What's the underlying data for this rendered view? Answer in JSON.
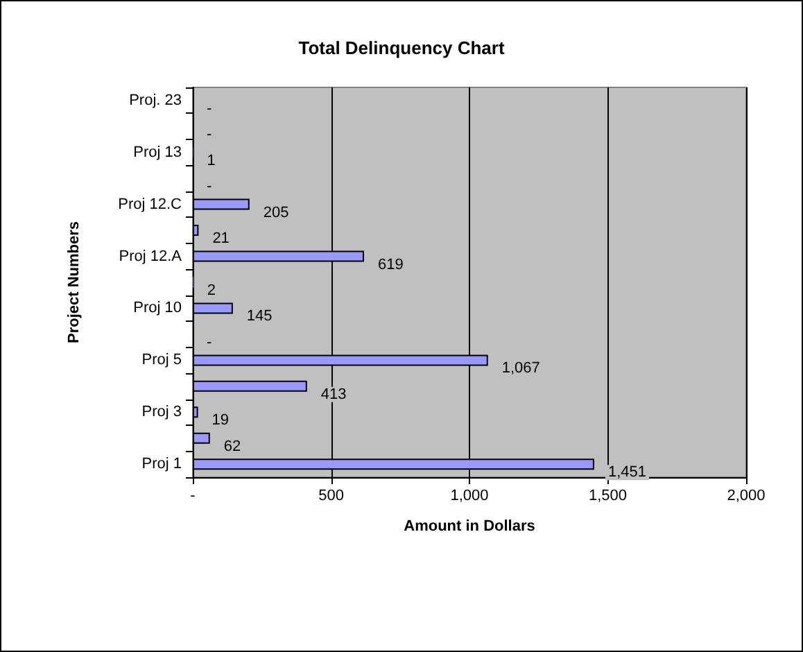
{
  "chart_data": {
    "type": "bar",
    "orientation": "horizontal",
    "title": "Total Delinquency Chart",
    "xlabel": "Amount in Dollars",
    "ylabel": "Project Numbers",
    "categories": [
      "Proj. 23",
      null,
      "Proj 13",
      null,
      "Proj 12.C",
      null,
      "Proj 12.A",
      null,
      "Proj 10",
      null,
      "Proj 5",
      null,
      "Proj 3",
      null,
      "Proj 1"
    ],
    "values": [
      0,
      0,
      1,
      0,
      205,
      21,
      619,
      2,
      145,
      0,
      1067,
      413,
      19,
      62,
      1451
    ],
    "value_labels": [
      "-",
      "-",
      "1",
      "-",
      "205",
      "21",
      "619",
      "2",
      "145",
      "-",
      "1,067",
      "413",
      "19",
      "62",
      "1,451"
    ],
    "color": "#9999ff",
    "xlim": [
      0,
      2000
    ],
    "xticks": [
      {
        "value": 0,
        "label": "-"
      },
      500,
      {
        "value": 1000,
        "label": "1,000"
      },
      {
        "value": 1500,
        "label": "1,500"
      },
      {
        "value": 2000,
        "label": "2,000"
      }
    ],
    "grid": "x"
  }
}
